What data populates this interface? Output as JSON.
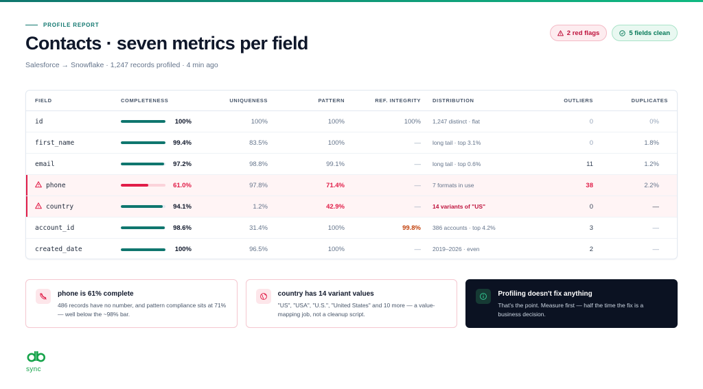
{
  "header": {
    "eyebrow": "PROFILE REPORT",
    "title": "Contacts · seven metrics per field",
    "subtitle": "Salesforce → Snowflake · 1,247 records profiled · 4 min ago",
    "badge_red": "2 red flags",
    "badge_green": "5 fields clean"
  },
  "colors": {
    "accent": "#0f766e",
    "danger": "#e11d48",
    "warning": "#c2410c"
  },
  "table": {
    "columns": {
      "field": "FIELD",
      "completeness": "COMPLETENESS",
      "uniqueness": "UNIQUENESS",
      "pattern": "PATTERN",
      "ref": "REF. INTEGRITY",
      "distribution": "DISTRIBUTION",
      "outliers": "OUTLIERS",
      "duplicates": "DUPLICATES"
    },
    "rows": [
      {
        "field": "id",
        "completeness": "100%",
        "completeness_value": 100,
        "uniqueness": "100%",
        "pattern": "100%",
        "ref": "100%",
        "distribution": "1,247 distinct · flat",
        "outliers": "0",
        "duplicates": "0%"
      },
      {
        "field": "first_name",
        "completeness": "99.4%",
        "completeness_value": 99.4,
        "uniqueness": "83.5%",
        "pattern": "100%",
        "ref": "—",
        "distribution": "long tail · top 3.1%",
        "outliers": "0",
        "duplicates": "1.8%"
      },
      {
        "field": "email",
        "completeness": "97.2%",
        "completeness_value": 97.2,
        "uniqueness": "98.8%",
        "pattern": "99.1%",
        "ref": "—",
        "distribution": "long tail · top 0.6%",
        "outliers": "11",
        "duplicates": "1.2%"
      },
      {
        "field": "phone",
        "completeness": "61.0%",
        "completeness_value": 61.0,
        "uniqueness": "97.8%",
        "pattern": "71.4%",
        "ref": "—",
        "distribution": "7 formats in use",
        "outliers": "38",
        "duplicates": "2.2%"
      },
      {
        "field": "country",
        "completeness": "94.1%",
        "completeness_value": 94.1,
        "uniqueness": "1.2%",
        "pattern": "42.9%",
        "ref": "—",
        "distribution": "14 variants of \"US\"",
        "outliers": "0",
        "duplicates": "—"
      },
      {
        "field": "account_id",
        "completeness": "98.6%",
        "completeness_value": 98.6,
        "uniqueness": "31.4%",
        "pattern": "100%",
        "ref": "99.8%",
        "distribution": "386 accounts · top 4.2%",
        "outliers": "3",
        "duplicates": "—"
      },
      {
        "field": "created_date",
        "completeness": "100%",
        "completeness_value": 100,
        "uniqueness": "96.5%",
        "pattern": "100%",
        "ref": "—",
        "distribution": "2019–2026 · even",
        "outliers": "2",
        "duplicates": "—"
      }
    ]
  },
  "cards": [
    {
      "title": "phone is 61% complete",
      "body": "486 records have no number, and pattern compliance sits at 71% — well below the ~98% bar.",
      "icon": "phone-off-icon"
    },
    {
      "title": "country has 14 variant values",
      "body": "\"US\", \"USA\", \"U.S.\", \"United States\" and 10 more — a value-mapping job, not a cleanup script.",
      "icon": "globe-icon"
    },
    {
      "title": "Profiling doesn't fix anything",
      "body": "That's the point. Measure first — half the time the fix is a business decision.",
      "icon": "info-icon"
    }
  ],
  "logo": {
    "text": "sync"
  }
}
